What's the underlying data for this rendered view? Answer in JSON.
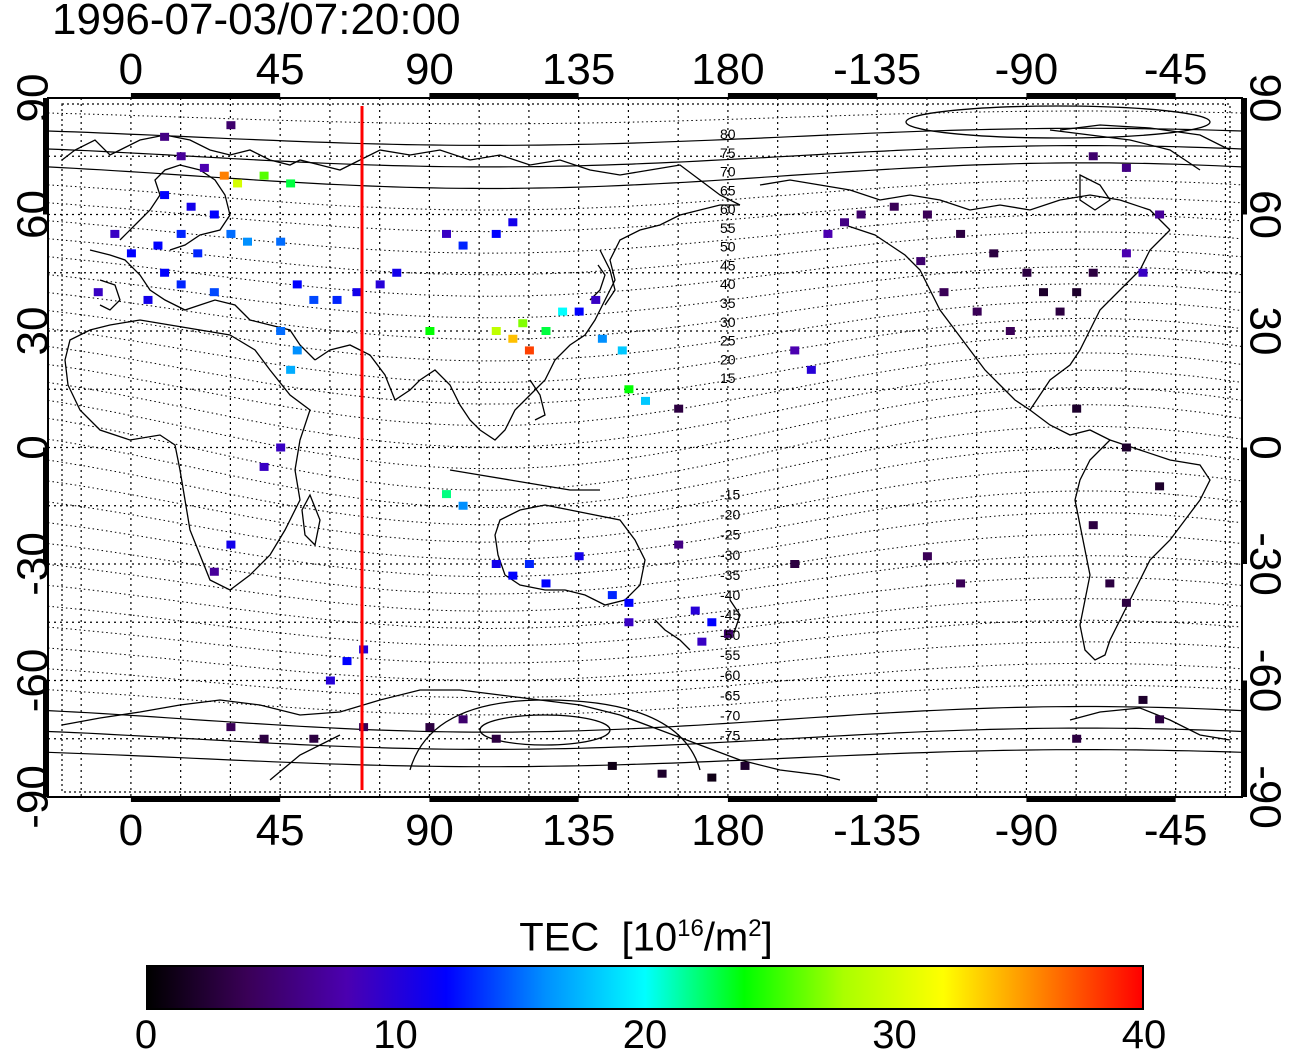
{
  "timestamp": "1996-07-03/07:20:00",
  "map": {
    "projection": "cylindrical (Plate Carree), centered 60E",
    "lon_ticks_top": [
      "0",
      "45",
      "90",
      "135",
      "180",
      "-135",
      "-90",
      "-45"
    ],
    "lon_ticks_bottom": [
      "0",
      "45",
      "90",
      "135",
      "180",
      "-135",
      "-90",
      "-45"
    ],
    "lon_tick_values": [
      0,
      45,
      90,
      135,
      180,
      225,
      270,
      315
    ],
    "lat_ticks_left": [
      "90",
      "60",
      "30",
      "0",
      "-30",
      "-60",
      "-90"
    ],
    "lat_ticks_right": [
      "90",
      "60",
      "30",
      "0",
      "-30",
      "-60",
      "-90"
    ],
    "lat_tick_values": [
      90,
      60,
      30,
      0,
      -30,
      -60,
      -90
    ],
    "lon_range": [
      -25,
      335
    ],
    "lat_range": [
      -90,
      90
    ],
    "grid": true,
    "meridian_line": {
      "lon": 70,
      "color": "#ff0000"
    },
    "magnetic_lat_labels": [
      "80",
      "75",
      "70",
      "65",
      "60",
      "55",
      "50",
      "45",
      "40",
      "35",
      "30",
      "25",
      "20",
      "15",
      "-15",
      "-20",
      "-25",
      "-30",
      "-35",
      "-40",
      "-45",
      "-50",
      "-55",
      "-60",
      "-65",
      "-70",
      "-75"
    ],
    "magnetic_lat_values": [
      80,
      75,
      70,
      65,
      60,
      55,
      50,
      45,
      40,
      35,
      30,
      25,
      20,
      15,
      -15,
      -20,
      -25,
      -30,
      -35,
      -40,
      -45,
      -50,
      -55,
      -60,
      -65,
      -70,
      -75
    ]
  },
  "colorbar": {
    "title": "TEC",
    "unit_prefix": "[10",
    "unit_exp": "16",
    "unit_mid": "/m",
    "unit_exp2": "2",
    "unit_suffix": "]",
    "min": 0,
    "max": 40,
    "tick_labels": [
      "0",
      "10",
      "20",
      "30",
      "40"
    ],
    "colors": [
      "#000000",
      "#3a0057",
      "#4b00b0",
      "#0000ff",
      "#0090ff",
      "#00ffff",
      "#00ff00",
      "#aaff00",
      "#ffff00",
      "#ff8000",
      "#ff0000"
    ]
  },
  "chart_data": {
    "type": "scatter",
    "title": "1996-07-03/07:20:00",
    "xlabel": "",
    "ylabel": "",
    "xlim": [
      -25,
      335
    ],
    "ylim": [
      -90,
      90
    ],
    "value_label": "TEC [10^16/m^2]",
    "clim": [
      0,
      40
    ],
    "points": [
      {
        "x": 10,
        "y": 80,
        "v": 6
      },
      {
        "x": 30,
        "y": 83,
        "v": 5
      },
      {
        "x": 15,
        "y": 75,
        "v": 7
      },
      {
        "x": 22,
        "y": 72,
        "v": 8
      },
      {
        "x": 28,
        "y": 70,
        "v": 36
      },
      {
        "x": 32,
        "y": 68,
        "v": 30
      },
      {
        "x": 40,
        "y": 70,
        "v": 26
      },
      {
        "x": 48,
        "y": 68,
        "v": 23
      },
      {
        "x": 10,
        "y": 65,
        "v": 12
      },
      {
        "x": 18,
        "y": 62,
        "v": 11
      },
      {
        "x": 25,
        "y": 60,
        "v": 12
      },
      {
        "x": 15,
        "y": 55,
        "v": 13
      },
      {
        "x": 8,
        "y": 52,
        "v": 12
      },
      {
        "x": 0,
        "y": 50,
        "v": 12
      },
      {
        "x": -5,
        "y": 55,
        "v": 9
      },
      {
        "x": 20,
        "y": 50,
        "v": 13
      },
      {
        "x": 30,
        "y": 55,
        "v": 15
      },
      {
        "x": 35,
        "y": 53,
        "v": 16
      },
      {
        "x": 45,
        "y": 53,
        "v": 15
      },
      {
        "x": 10,
        "y": 45,
        "v": 12
      },
      {
        "x": 15,
        "y": 42,
        "v": 13
      },
      {
        "x": 25,
        "y": 40,
        "v": 14
      },
      {
        "x": 5,
        "y": 38,
        "v": 11
      },
      {
        "x": -10,
        "y": 40,
        "v": 9
      },
      {
        "x": 50,
        "y": 42,
        "v": 12
      },
      {
        "x": 55,
        "y": 38,
        "v": 14
      },
      {
        "x": 62,
        "y": 38,
        "v": 13
      },
      {
        "x": 68,
        "y": 40,
        "v": 11
      },
      {
        "x": 75,
        "y": 42,
        "v": 10
      },
      {
        "x": 80,
        "y": 45,
        "v": 11
      },
      {
        "x": 45,
        "y": 30,
        "v": 15
      },
      {
        "x": 50,
        "y": 25,
        "v": 16
      },
      {
        "x": 48,
        "y": 20,
        "v": 17
      },
      {
        "x": 95,
        "y": 55,
        "v": 9
      },
      {
        "x": 100,
        "y": 52,
        "v": 13
      },
      {
        "x": 110,
        "y": 55,
        "v": 12
      },
      {
        "x": 115,
        "y": 58,
        "v": 11
      },
      {
        "x": 90,
        "y": 30,
        "v": 24
      },
      {
        "x": 110,
        "y": 30,
        "v": 29
      },
      {
        "x": 115,
        "y": 28,
        "v": 34
      },
      {
        "x": 120,
        "y": 25,
        "v": 38
      },
      {
        "x": 118,
        "y": 32,
        "v": 27
      },
      {
        "x": 125,
        "y": 30,
        "v": 23
      },
      {
        "x": 130,
        "y": 35,
        "v": 20
      },
      {
        "x": 135,
        "y": 35,
        "v": 12
      },
      {
        "x": 140,
        "y": 38,
        "v": 9
      },
      {
        "x": 142,
        "y": 28,
        "v": 16
      },
      {
        "x": 148,
        "y": 25,
        "v": 18
      },
      {
        "x": 150,
        "y": 15,
        "v": 24
      },
      {
        "x": 155,
        "y": 12,
        "v": 18
      },
      {
        "x": 165,
        "y": 10,
        "v": 3
      },
      {
        "x": 200,
        "y": 25,
        "v": 8
      },
      {
        "x": 205,
        "y": 20,
        "v": 10
      },
      {
        "x": 210,
        "y": 55,
        "v": 8
      },
      {
        "x": 215,
        "y": 58,
        "v": 6
      },
      {
        "x": 220,
        "y": 60,
        "v": 5
      },
      {
        "x": 230,
        "y": 62,
        "v": 4
      },
      {
        "x": 240,
        "y": 60,
        "v": 4
      },
      {
        "x": 250,
        "y": 55,
        "v": 3
      },
      {
        "x": 260,
        "y": 50,
        "v": 3
      },
      {
        "x": 270,
        "y": 45,
        "v": 3
      },
      {
        "x": 275,
        "y": 40,
        "v": 2
      },
      {
        "x": 280,
        "y": 35,
        "v": 3
      },
      {
        "x": 285,
        "y": 40,
        "v": 2
      },
      {
        "x": 290,
        "y": 45,
        "v": 3
      },
      {
        "x": 265,
        "y": 30,
        "v": 4
      },
      {
        "x": 255,
        "y": 35,
        "v": 4
      },
      {
        "x": 245,
        "y": 40,
        "v": 4
      },
      {
        "x": 238,
        "y": 48,
        "v": 5
      },
      {
        "x": 300,
        "y": 50,
        "v": 8
      },
      {
        "x": 305,
        "y": 45,
        "v": 9
      },
      {
        "x": 290,
        "y": 75,
        "v": 5
      },
      {
        "x": 300,
        "y": 72,
        "v": 6
      },
      {
        "x": 310,
        "y": 60,
        "v": 7
      },
      {
        "x": 285,
        "y": 10,
        "v": 2
      },
      {
        "x": 300,
        "y": 0,
        "v": 2
      },
      {
        "x": 310,
        "y": -10,
        "v": 2
      },
      {
        "x": 290,
        "y": -20,
        "v": 3
      },
      {
        "x": 295,
        "y": -35,
        "v": 3
      },
      {
        "x": 300,
        "y": -40,
        "v": 3
      },
      {
        "x": 305,
        "y": -65,
        "v": 2
      },
      {
        "x": 310,
        "y": -70,
        "v": 3
      },
      {
        "x": 285,
        "y": -75,
        "v": 3
      },
      {
        "x": 45,
        "y": 0,
        "v": 9
      },
      {
        "x": 40,
        "y": -5,
        "v": 9
      },
      {
        "x": 30,
        "y": -25,
        "v": 11
      },
      {
        "x": 25,
        "y": -32,
        "v": 7
      },
      {
        "x": 110,
        "y": -30,
        "v": 11
      },
      {
        "x": 115,
        "y": -33,
        "v": 12
      },
      {
        "x": 120,
        "y": -30,
        "v": 13
      },
      {
        "x": 125,
        "y": -35,
        "v": 12
      },
      {
        "x": 135,
        "y": -28,
        "v": 11
      },
      {
        "x": 145,
        "y": -38,
        "v": 13
      },
      {
        "x": 150,
        "y": -40,
        "v": 12
      },
      {
        "x": 150,
        "y": -45,
        "v": 9
      },
      {
        "x": 170,
        "y": -42,
        "v": 10
      },
      {
        "x": 175,
        "y": -45,
        "v": 12
      },
      {
        "x": 172,
        "y": -50,
        "v": 9
      },
      {
        "x": 180,
        "y": -48,
        "v": 5
      },
      {
        "x": 165,
        "y": -25,
        "v": 6
      },
      {
        "x": 95,
        "y": -12,
        "v": 22
      },
      {
        "x": 100,
        "y": -15,
        "v": 16
      },
      {
        "x": 70,
        "y": -52,
        "v": 10
      },
      {
        "x": 65,
        "y": -55,
        "v": 12
      },
      {
        "x": 60,
        "y": -60,
        "v": 10
      },
      {
        "x": 30,
        "y": -72,
        "v": 4
      },
      {
        "x": 40,
        "y": -75,
        "v": 3
      },
      {
        "x": 55,
        "y": -75,
        "v": 3
      },
      {
        "x": 70,
        "y": -72,
        "v": 4
      },
      {
        "x": 90,
        "y": -72,
        "v": 3
      },
      {
        "x": 100,
        "y": -70,
        "v": 5
      },
      {
        "x": 110,
        "y": -75,
        "v": 3
      },
      {
        "x": 145,
        "y": -82,
        "v": 1
      },
      {
        "x": 160,
        "y": -84,
        "v": 2
      },
      {
        "x": 175,
        "y": -85,
        "v": 1
      },
      {
        "x": 185,
        "y": -82,
        "v": 2
      },
      {
        "x": 200,
        "y": -30,
        "v": 3
      },
      {
        "x": 240,
        "y": -28,
        "v": 4
      },
      {
        "x": 250,
        "y": -35,
        "v": 4
      }
    ]
  }
}
